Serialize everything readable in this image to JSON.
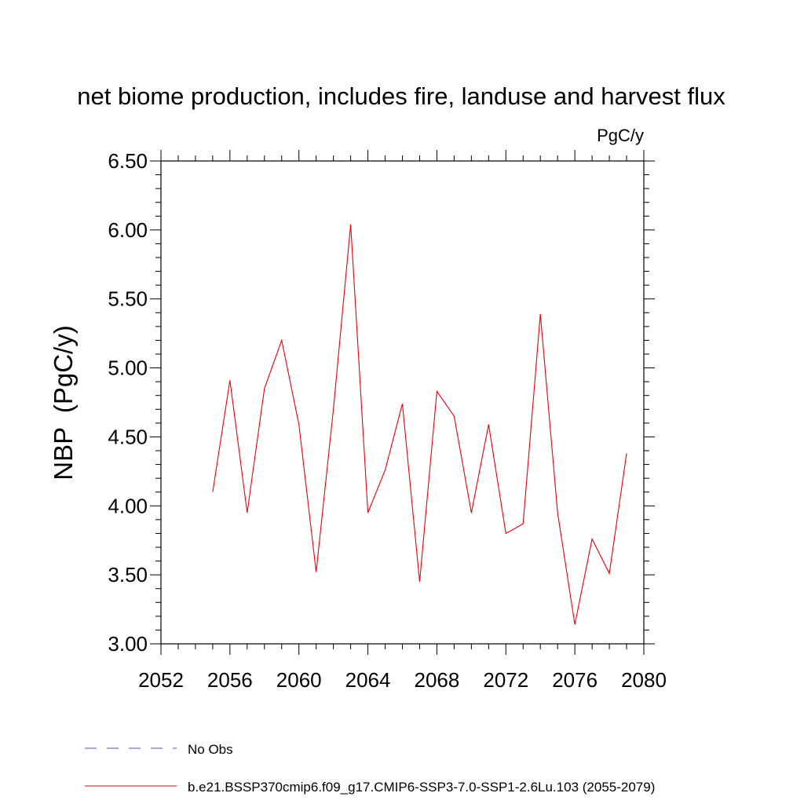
{
  "chart_data": {
    "type": "line",
    "title": "net biome production, includes fire, landuse and harvest flux",
    "units": "PgC/y",
    "ylabel": "NBP  (PgC/y)",
    "xlabel": "",
    "xlim": [
      2052,
      2080
    ],
    "ylim": [
      3.0,
      6.5
    ],
    "xticks": [
      "2052",
      "2056",
      "2060",
      "2064",
      "2068",
      "2072",
      "2076",
      "2080"
    ],
    "yticks": [
      "3.00",
      "3.50",
      "4.00",
      "4.50",
      "5.00",
      "5.50",
      "6.00",
      "6.50"
    ],
    "series": [
      {
        "name": "b.e21.BSSP370cmip6.f09_g17.CMIP6-SSP3-7.0-SSP1-2.6Lu.103 (2055-2079)",
        "color": "#e8000b",
        "x": [
          2055,
          2056,
          2057,
          2058,
          2059,
          2060,
          2061,
          2062,
          2063,
          2064,
          2065,
          2066,
          2067,
          2068,
          2069,
          2070,
          2071,
          2072,
          2073,
          2074,
          2075,
          2076,
          2077,
          2078,
          2079
        ],
        "values": [
          4.1,
          4.91,
          3.95,
          4.85,
          5.2,
          4.59,
          3.52,
          4.7,
          6.04,
          3.95,
          4.26,
          4.74,
          3.45,
          4.83,
          4.65,
          3.95,
          4.59,
          3.8,
          3.87,
          5.39,
          3.95,
          3.14,
          3.76,
          3.51,
          4.38
        ]
      }
    ],
    "legend": [
      {
        "label": "No Obs",
        "style": "dashed",
        "color": "#5a4fa8"
      },
      {
        "label": "b.e21.BSSP370cmip6.f09_g17.CMIP6-SSP3-7.0-SSP1-2.6Lu.103 (2055-2079)",
        "style": "solid",
        "color": "#e8000b"
      }
    ]
  }
}
